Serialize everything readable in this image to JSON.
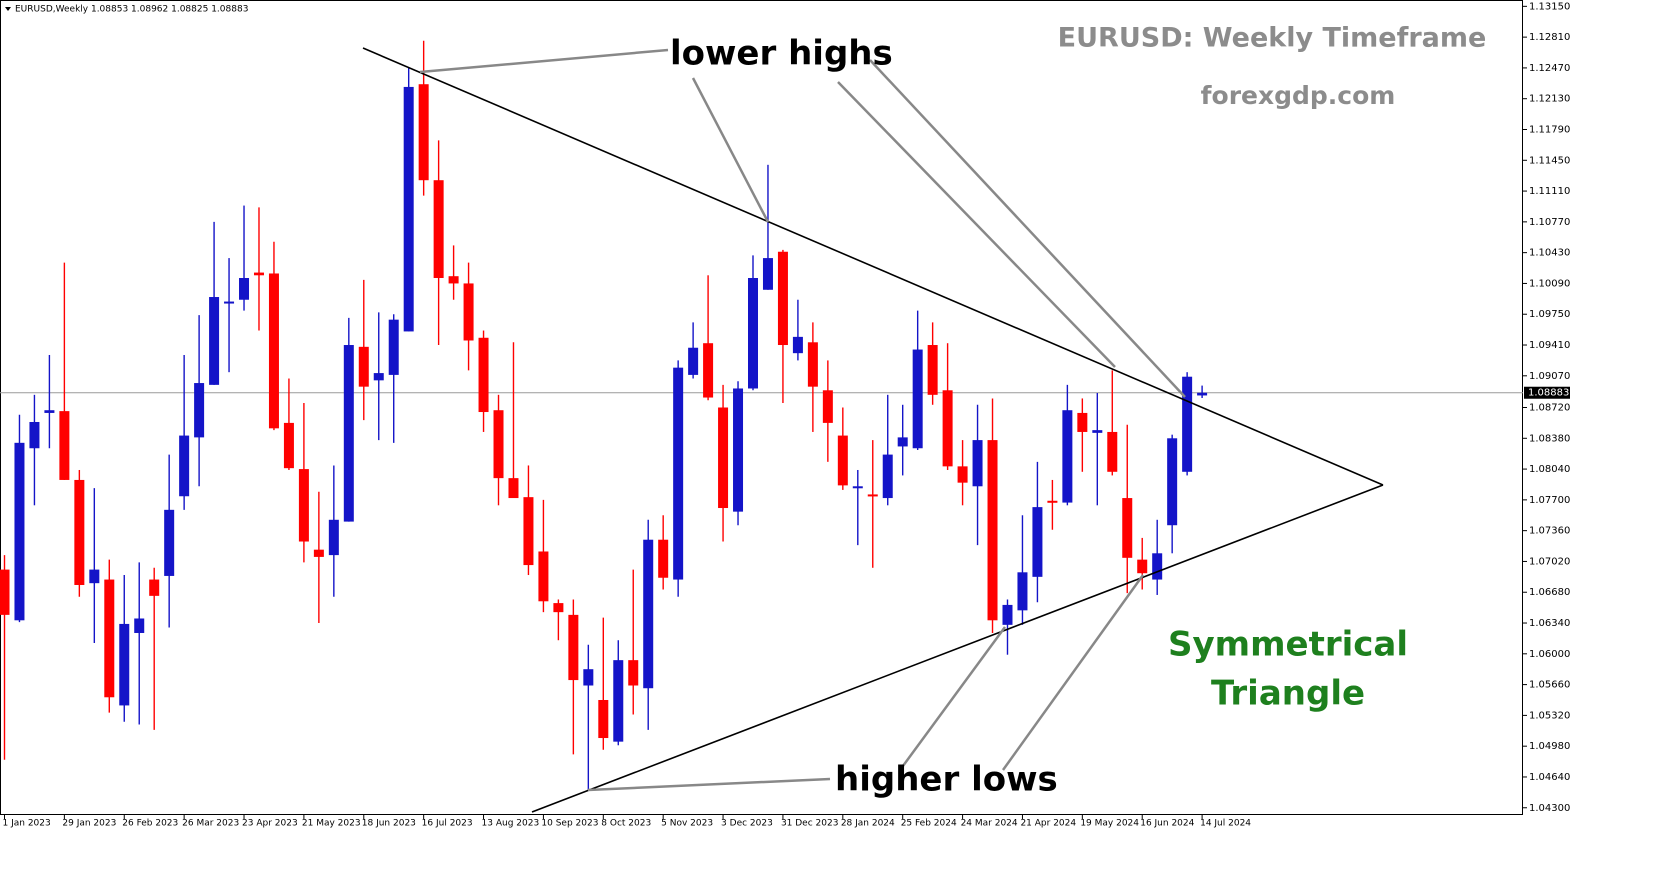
{
  "chart_data": {
    "type": "candlestick",
    "header": "EURUSD,Weekly  1.08853 1.08962 1.08825 1.08883",
    "title": "EURUSD: Weekly Timeframe",
    "subtitle": "forexgdp.com",
    "annotations": [
      "lower highs",
      "higher lows",
      "Symmetrical",
      "Triangle"
    ],
    "up_color": "#1414c8",
    "down_color": "#ff0000",
    "last_price": 1.08883,
    "ylim": [
      1.0422,
      1.1322
    ],
    "yticks": [
      {
        "value": 1.1315,
        "label": "1.13150"
      },
      {
        "value": 1.1281,
        "label": "1.12810"
      },
      {
        "value": 1.1247,
        "label": "1.12470"
      },
      {
        "value": 1.1213,
        "label": "1.12130"
      },
      {
        "value": 1.1179,
        "label": "1.11790"
      },
      {
        "value": 1.1145,
        "label": "1.11450"
      },
      {
        "value": 1.1111,
        "label": "1.11110"
      },
      {
        "value": 1.1077,
        "label": "1.10770"
      },
      {
        "value": 1.1043,
        "label": "1.10430"
      },
      {
        "value": 1.1009,
        "label": "1.10090"
      },
      {
        "value": 1.0975,
        "label": "1.09750"
      },
      {
        "value": 1.0941,
        "label": "1.09410"
      },
      {
        "value": 1.0907,
        "label": "1.09070"
      },
      {
        "value": 1.0872,
        "label": "1.08720"
      },
      {
        "value": 1.0838,
        "label": "1.08380"
      },
      {
        "value": 1.0804,
        "label": "1.08040"
      },
      {
        "value": 1.077,
        "label": "1.07700"
      },
      {
        "value": 1.0736,
        "label": "1.07360"
      },
      {
        "value": 1.0702,
        "label": "1.07020"
      },
      {
        "value": 1.0668,
        "label": "1.06680"
      },
      {
        "value": 1.0634,
        "label": "1.06340"
      },
      {
        "value": 1.06,
        "label": "1.06000"
      },
      {
        "value": 1.0566,
        "label": "1.05660"
      },
      {
        "value": 1.0532,
        "label": "1.05320"
      },
      {
        "value": 1.0498,
        "label": "1.04980"
      },
      {
        "value": 1.0464,
        "label": "1.04640"
      },
      {
        "value": 1.043,
        "label": "1.04300"
      }
    ],
    "categories": [
      "1 Jan 2023",
      null,
      null,
      null,
      "29 Jan 2023",
      null,
      null,
      null,
      "26 Feb 2023",
      null,
      null,
      null,
      "26 Mar 2023",
      null,
      null,
      null,
      "23 Apr 2023",
      null,
      null,
      null,
      "21 May 2023",
      null,
      null,
      null,
      "18 Jun 2023",
      null,
      null,
      null,
      "16 Jul 2023",
      null,
      null,
      null,
      "13 Aug 2023",
      null,
      null,
      null,
      "10 Sep 2023",
      null,
      null,
      null,
      "8 Oct 2023",
      null,
      null,
      null,
      "5 Nov 2023",
      null,
      null,
      null,
      "3 Dec 2023",
      null,
      null,
      null,
      "31 Dec 2023",
      null,
      null,
      null,
      "28 Jan 2024",
      null,
      null,
      null,
      "25 Feb 2024",
      null,
      null,
      null,
      "24 Mar 2024",
      null,
      null,
      null,
      "21 Apr 2024",
      null,
      null,
      null,
      "19 May 2024",
      null,
      null,
      null,
      "16 Jun 2024",
      null,
      null,
      null,
      "14 Jul 2024"
    ],
    "open": [
      1.0693,
      1.0637,
      1.0827,
      1.0866,
      1.0868,
      1.0792,
      1.0678,
      1.0682,
      1.0543,
      1.0623,
      1.0682,
      1.0686,
      1.0774,
      1.0839,
      1.0897,
      1.0988,
      1.0991,
      1.1021,
      1.102,
      1.0855,
      1.0804,
      1.0715,
      1.0709,
      1.0746,
      1.0939,
      1.0902,
      1.0908,
      1.0956,
      1.1229,
      1.1123,
      1.1017,
      1.1009,
      1.0949,
      1.0869,
      1.0794,
      1.0773,
      1.0713,
      1.0656,
      1.0643,
      1.0565,
      1.0549,
      1.0503,
      1.0593,
      1.0562,
      1.0726,
      1.0682,
      1.0908,
      1.0943,
      1.0872,
      1.0757,
      1.0893,
      1.1002,
      1.1044,
      1.0932,
      1.0944,
      1.0891,
      1.0841,
      1.0783,
      1.0776,
      1.0772,
      1.0829,
      1.0827,
      1.0941,
      1.0891,
      1.0807,
      1.0785,
      1.0836,
      1.0632,
      1.0648,
      1.0685,
      1.0769,
      1.0767,
      1.0866,
      1.0844,
      1.0845,
      1.0772,
      1.0704,
      1.0682,
      1.0742,
      1.0801,
      1.08853
    ],
    "high": [
      1.0709,
      1.0864,
      1.0886,
      1.093,
      1.1032,
      1.0803,
      1.0783,
      1.0704,
      1.0687,
      1.0701,
      1.0695,
      1.082,
      1.093,
      1.0974,
      1.1077,
      1.1037,
      1.1095,
      1.1093,
      1.1055,
      1.0904,
      1.0877,
      1.0779,
      1.0808,
      1.0971,
      1.1013,
      1.0977,
      1.0975,
      1.1247,
      1.1277,
      1.1167,
      1.1051,
      1.1032,
      1.0957,
      1.0886,
      1.0944,
      1.0808,
      1.077,
      1.066,
      1.066,
      1.061,
      1.064,
      1.0615,
      1.0693,
      1.0748,
      1.0753,
      1.0924,
      1.0966,
      1.1018,
      1.0897,
      1.0901,
      1.104,
      1.114,
      1.1046,
      1.0991,
      1.0966,
      1.0924,
      1.0872,
      1.0803,
      1.0836,
      1.0886,
      1.0875,
      1.0979,
      1.0966,
      1.0943,
      1.0836,
      1.0875,
      1.0882,
      1.066,
      1.0753,
      1.0812,
      1.0792,
      1.0897,
      1.0882,
      1.0888,
      1.0913,
      1.0853,
      1.0728,
      1.0748,
      1.0842,
      1.0911,
      1.08962
    ],
    "low": [
      1.0483,
      1.0635,
      1.0764,
      1.0827,
      1.0792,
      1.0663,
      1.0612,
      1.0535,
      1.0525,
      1.0522,
      1.0516,
      1.0629,
      1.0759,
      1.0785,
      1.0897,
      1.0911,
      1.0979,
      1.0957,
      1.0847,
      1.0803,
      1.0701,
      1.0634,
      1.0663,
      1.0746,
      1.0858,
      1.0836,
      1.0833,
      1.0956,
      1.1106,
      1.0941,
      1.0991,
      1.0913,
      1.0845,
      1.0764,
      1.0772,
      1.0687,
      1.0646,
      1.0615,
      1.0489,
      1.045,
      1.0494,
      1.0499,
      1.0533,
      1.0516,
      1.0671,
      1.0663,
      1.0904,
      1.088,
      1.0724,
      1.0742,
      1.0891,
      1.1002,
      1.0877,
      1.0924,
      1.0845,
      1.0812,
      1.0781,
      1.072,
      1.0695,
      1.0764,
      1.0797,
      1.0825,
      1.0875,
      1.0803,
      1.0764,
      1.072,
      1.0623,
      1.0599,
      1.0632,
      1.0657,
      1.0737,
      1.0764,
      1.0801,
      1.0764,
      1.0797,
      1.0667,
      1.0671,
      1.0665,
      1.0711,
      1.0797,
      1.08825
    ],
    "close": [
      1.0643,
      1.0833,
      1.0856,
      1.0869,
      1.0792,
      1.0676,
      1.0693,
      1.0552,
      1.0633,
      1.0639,
      1.0664,
      1.0759,
      1.0841,
      1.0899,
      1.0994,
      1.0989,
      1.1015,
      1.1018,
      1.0849,
      1.0805,
      1.0724,
      1.0707,
      1.0748,
      1.0941,
      1.0895,
      1.091,
      1.0969,
      1.1226,
      1.1123,
      1.1015,
      1.1009,
      1.0946,
      1.0867,
      1.0794,
      1.0772,
      1.0698,
      1.0658,
      1.0646,
      1.0571,
      1.0583,
      1.0507,
      1.0593,
      1.0565,
      1.0726,
      1.0684,
      1.0916,
      1.0938,
      1.0883,
      1.0761,
      1.0893,
      1.1015,
      1.1037,
      1.0941,
      1.095,
      1.0895,
      1.0855,
      1.0786,
      1.0785,
      1.0774,
      1.082,
      1.0839,
      1.0936,
      1.0886,
      1.0807,
      1.0789,
      1.0836,
      1.0637,
      1.0654,
      1.069,
      1.0762,
      1.0768,
      1.0869,
      1.0845,
      1.0847,
      1.0801,
      1.0706,
      1.0689,
      1.0711,
      1.0838,
      1.0906,
      1.08883
    ]
  }
}
